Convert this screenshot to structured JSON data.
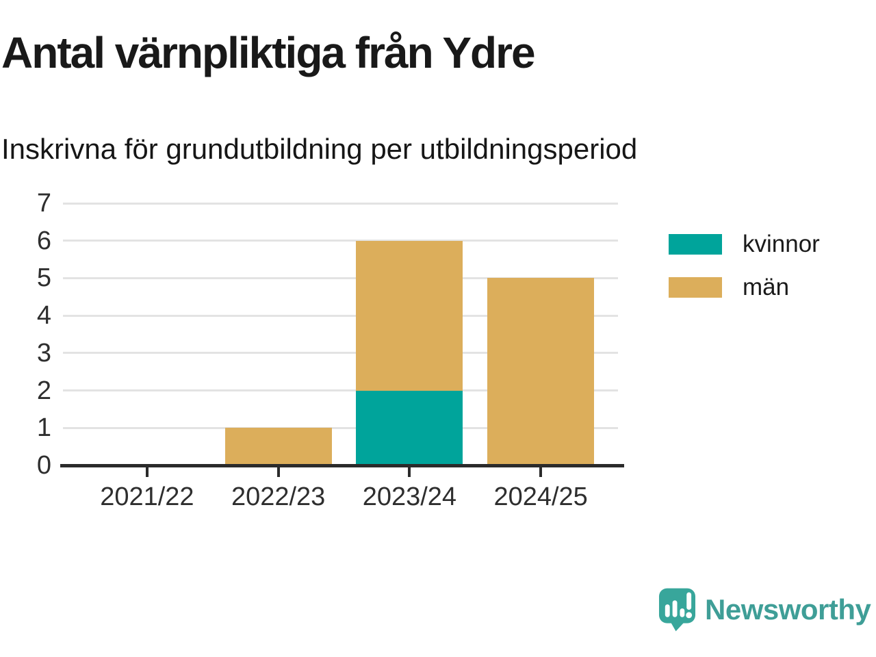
{
  "header": {
    "title": "Antal värnpliktiga från Ydre",
    "subtitle": "Inskrivna för grundutbildning per utbildningsperiod"
  },
  "chart_data": {
    "type": "bar",
    "stacked": true,
    "categories": [
      "2021/22",
      "2022/23",
      "2023/24",
      "2024/25"
    ],
    "series": [
      {
        "name": "kvinnor",
        "color": "#00a49b",
        "values": [
          0,
          0,
          2,
          0
        ]
      },
      {
        "name": "män",
        "color": "#dcae5b",
        "values": [
          0,
          1,
          4,
          5
        ]
      }
    ],
    "totals": [
      0,
      1,
      6,
      5
    ],
    "ylim": [
      0,
      7
    ],
    "yticks": [
      0,
      1,
      2,
      3,
      4,
      5,
      6,
      7
    ],
    "xlabel": "",
    "ylabel": "",
    "grid": "horizontal",
    "legend_position": "right"
  },
  "branding": {
    "logo_text": "Newsworthy",
    "text_color": "#3f9e97",
    "icon_color": "#38a69b",
    "icon": "newsworthy-speech-bubble-bar-chart-icon"
  },
  "colors": {
    "axis": "#2b2b2b",
    "gridline": "#e3e3e3",
    "title": "#191919",
    "tick_label": "#2e2e2e"
  }
}
